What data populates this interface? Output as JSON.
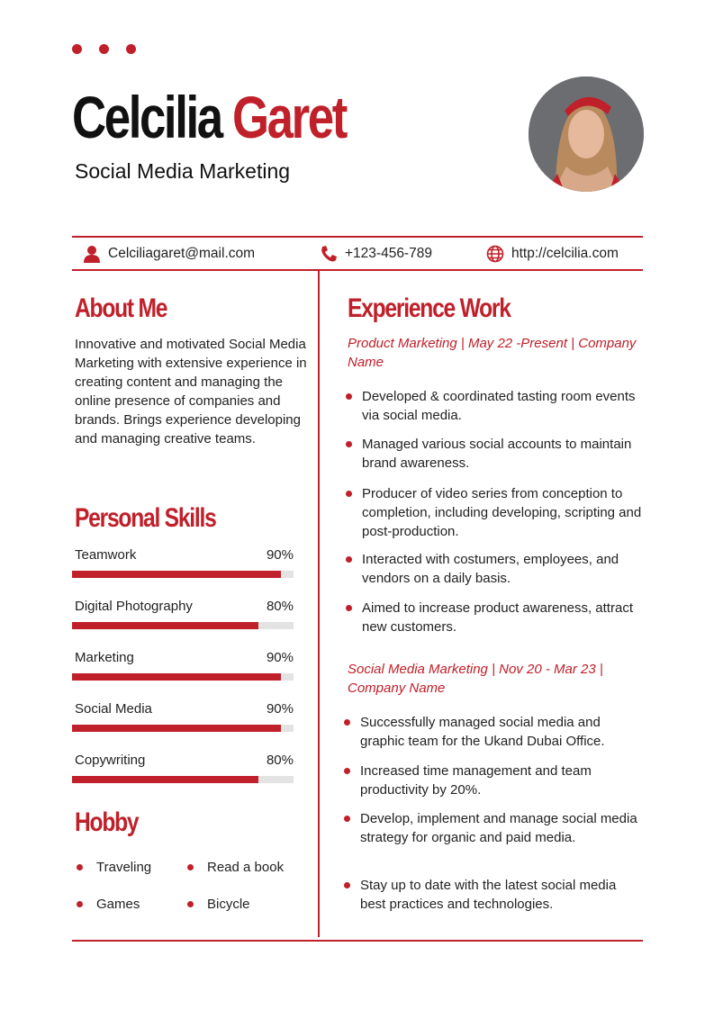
{
  "header": {
    "first_name": "Celcilia",
    "last_name": "Garet",
    "role": "Social Media Marketing"
  },
  "contact": {
    "email": "Celciliagaret@mail.com",
    "phone": "+123-456-789",
    "website": "http://celcilia.com"
  },
  "about": {
    "title": "About Me",
    "text": "Innovative and motivated Social Media Marketing with extensive experience in creating content and managing the online presence of companies and brands. Brings experience developing and managing creative teams."
  },
  "skills": {
    "title": "Personal Skills",
    "items": [
      {
        "label": "Teamwork",
        "value": "90%",
        "level": 90
      },
      {
        "label": "Digital Photography",
        "value": "80%",
        "level": 80
      },
      {
        "label": "Marketing",
        "value": "90%",
        "level": 90
      },
      {
        "label": "Social Media",
        "value": "90%",
        "level": 90
      },
      {
        "label": "Copywriting",
        "value": "80%",
        "level": 80
      }
    ]
  },
  "hobby": {
    "title": "Hobby",
    "items": [
      "Traveling",
      "Read a book",
      "Games",
      "Bicycle"
    ]
  },
  "experience": {
    "title": "Experience Work",
    "jobs": [
      {
        "heading": "Product Marketing | May 22 -Present | Company Name",
        "bullets": [
          "Developed & coordinated tasting room events via social media.",
          "Managed various social accounts to maintain brand awareness.",
          "Producer of video series from conception to completion, including developing, scripting and post-production.",
          "Interacted with costumers, employees, and vendors on a daily basis.",
          "Aimed to increase product awareness, attract new customers."
        ]
      },
      {
        "heading": "Social Media Marketing | Nov 20 - Mar 23 | Company Name",
        "bullets": [
          "Successfully managed social media and graphic team for the Ukand Dubai Office.",
          "Increased time management and team productivity by 20%.",
          "Develop, implement and manage social media strategy for organic and paid media.",
          "Stay up to date with the latest social media best practices and technologies."
        ]
      }
    ]
  },
  "colors": {
    "accent": "#c0202a"
  }
}
